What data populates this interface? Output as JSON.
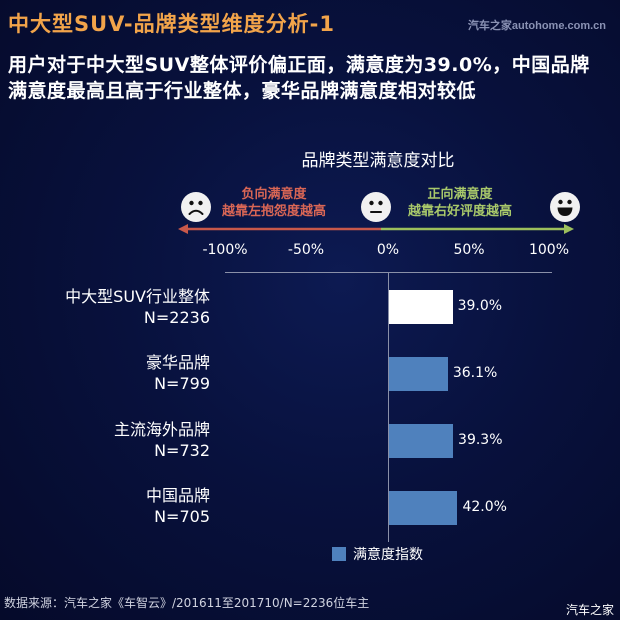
{
  "header": {
    "title": "中大型SUV-品牌类型维度分析-1",
    "watermark": "汽车之家autohome.com.cn"
  },
  "summary": "用户对于中大型SUV整体评价偏正面，满意度为39.0%，中国品牌满意度最高且高于行业整体，豪华品牌满意度相对较低",
  "scale": {
    "negative": {
      "line1": "负向满意度",
      "line2": "越靠左抱怨度越高",
      "color": "#d96655",
      "icon": "sad-face-icon"
    },
    "neutral_icon": "neutral-face-icon",
    "positive": {
      "line1": "正向满意度",
      "line2": "越靠右好评度越高",
      "color": "#a8c86a",
      "icon": "happy-face-icon"
    },
    "ticks": [
      "-100%",
      "-50%",
      "0%",
      "50%",
      "100%"
    ]
  },
  "legend": {
    "label": "满意度指数",
    "color": "#4f81bd"
  },
  "footer": {
    "source": "数据来源：汽车之家《车智云》/201611至201710/N=2236位车主",
    "watermark": "汽车之家"
  },
  "chart_data": {
    "type": "bar",
    "orientation": "horizontal",
    "title": "品牌类型满意度对比",
    "categories": [
      {
        "name": "中大型SUV行业整体",
        "n": "N=2236"
      },
      {
        "name": "豪华品牌",
        "n": "N=799"
      },
      {
        "name": "主流海外品牌",
        "n": "N=732"
      },
      {
        "name": "中国品牌",
        "n": "N=705"
      }
    ],
    "series": [
      {
        "name": "满意度指数",
        "values": [
          39.0,
          36.1,
          39.3,
          42.0
        ],
        "labels": [
          "39.0%",
          "36.1%",
          "39.3%",
          "42.0%"
        ],
        "colors": [
          "#ffffff",
          "#4f81bd",
          "#4f81bd",
          "#4f81bd"
        ]
      }
    ],
    "xlim": [
      -100,
      100
    ],
    "xticks": [
      "-100%",
      "-50%",
      "0%",
      "50%",
      "100%"
    ],
    "xlabel": "",
    "ylabel": "",
    "grid": false,
    "legend_position": "bottom"
  }
}
